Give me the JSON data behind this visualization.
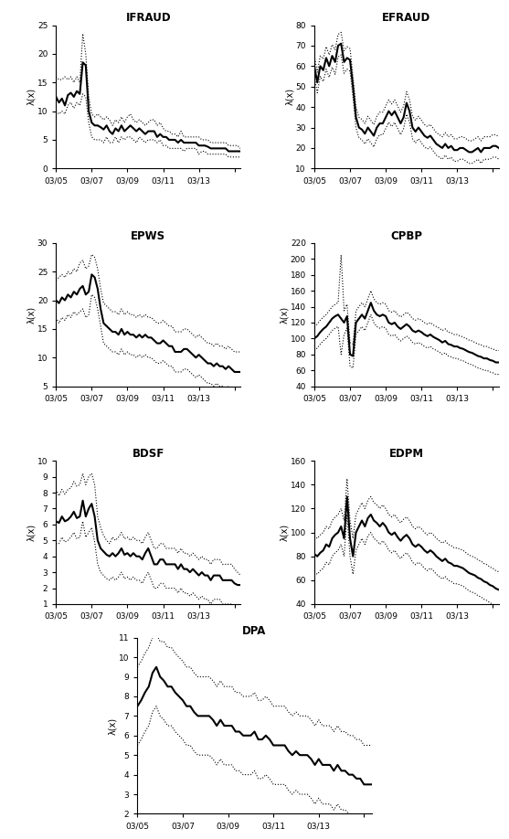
{
  "subplots": [
    {
      "title": "IFRAUD",
      "ylim": [
        0,
        25
      ],
      "yticks": [
        0,
        5,
        10,
        15,
        20,
        25
      ]
    },
    {
      "title": "EFRAUD",
      "ylim": [
        10,
        80
      ],
      "yticks": [
        10,
        20,
        30,
        40,
        50,
        60,
        70,
        80
      ]
    },
    {
      "title": "EPWS",
      "ylim": [
        5,
        30
      ],
      "yticks": [
        5,
        10,
        15,
        20,
        25,
        30
      ]
    },
    {
      "title": "CPBP",
      "ylim": [
        40,
        220
      ],
      "yticks": [
        40,
        60,
        80,
        100,
        120,
        140,
        160,
        180,
        200,
        220
      ]
    },
    {
      "title": "BDSF",
      "ylim": [
        1,
        10
      ],
      "yticks": [
        1,
        2,
        3,
        4,
        5,
        6,
        7,
        8,
        9,
        10
      ]
    },
    {
      "title": "EDPM",
      "ylim": [
        40,
        160
      ],
      "yticks": [
        40,
        60,
        80,
        100,
        120,
        140,
        160
      ]
    },
    {
      "title": "DPA",
      "ylim": [
        2,
        11
      ],
      "yticks": [
        2,
        3,
        4,
        5,
        6,
        7,
        8,
        9,
        10,
        11
      ]
    }
  ],
  "ylabel": "λ(x)",
  "xtick_positions": [
    0,
    12,
    24,
    36,
    48,
    60
  ],
  "xtick_labels": [
    "03/05",
    "03/07",
    "03/09",
    "03/11",
    "03/13",
    ""
  ],
  "n_points": 63,
  "IFRAUD_center": [
    12.5,
    11.5,
    12.2,
    11.0,
    12.8,
    13.2,
    12.5,
    13.5,
    13.0,
    18.5,
    18.0,
    10.0,
    8.0,
    7.5,
    7.5,
    7.2,
    6.8,
    7.5,
    6.5,
    6.0,
    7.0,
    6.5,
    7.5,
    6.5,
    7.0,
    7.5,
    7.0,
    6.5,
    7.0,
    6.5,
    6.0,
    6.5,
    6.5,
    6.5,
    5.5,
    6.0,
    5.5,
    5.5,
    5.0,
    5.0,
    5.0,
    4.5,
    5.0,
    4.5,
    4.5,
    4.5,
    4.5,
    4.5,
    4.0,
    4.0,
    4.0,
    3.8,
    3.5,
    3.5,
    3.5,
    3.5,
    3.5,
    3.5,
    3.0,
    3.0,
    3.0,
    3.0,
    3.0
  ],
  "IFRAUD_upper": [
    16.0,
    15.5,
    15.5,
    16.0,
    15.5,
    16.0,
    15.0,
    16.0,
    15.0,
    23.5,
    20.0,
    12.5,
    9.5,
    9.0,
    9.5,
    9.0,
    8.5,
    9.0,
    8.5,
    7.5,
    8.5,
    8.0,
    9.0,
    8.0,
    9.0,
    9.5,
    8.5,
    8.0,
    8.5,
    8.0,
    7.5,
    8.0,
    8.5,
    8.5,
    7.5,
    8.0,
    7.0,
    6.5,
    6.5,
    6.0,
    6.0,
    5.5,
    6.5,
    5.5,
    5.5,
    5.5,
    5.5,
    5.5,
    5.5,
    5.0,
    5.0,
    5.0,
    4.5,
    4.5,
    4.5,
    4.5,
    4.5,
    4.5,
    4.0,
    4.0,
    4.0,
    4.0,
    3.5
  ],
  "IFRAUD_lower": [
    10.0,
    9.5,
    10.0,
    9.5,
    11.0,
    11.5,
    10.5,
    11.5,
    11.0,
    13.0,
    12.5,
    8.0,
    5.5,
    5.0,
    5.0,
    5.0,
    4.5,
    5.5,
    4.5,
    4.5,
    5.5,
    4.5,
    5.5,
    5.0,
    5.5,
    5.5,
    5.0,
    4.5,
    5.5,
    5.0,
    4.5,
    5.0,
    5.0,
    5.0,
    4.5,
    5.0,
    4.0,
    4.0,
    3.5,
    3.5,
    3.5,
    3.5,
    3.5,
    3.0,
    3.5,
    3.5,
    3.5,
    3.5,
    2.5,
    3.0,
    3.0,
    2.5,
    2.5,
    2.5,
    2.5,
    2.5,
    2.5,
    2.5,
    2.0,
    2.0,
    2.0,
    2.0,
    2.0
  ],
  "EFRAUD_center": [
    60.0,
    52.0,
    60.0,
    58.0,
    64.0,
    60.0,
    65.0,
    62.0,
    70.0,
    71.0,
    62.0,
    64.0,
    63.0,
    50.0,
    35.0,
    30.0,
    29.0,
    27.0,
    30.0,
    28.0,
    26.0,
    30.0,
    32.0,
    32.0,
    35.0,
    38.0,
    36.0,
    38.0,
    35.0,
    32.0,
    35.0,
    42.0,
    38.0,
    30.0,
    28.0,
    30.0,
    28.0,
    26.0,
    25.0,
    26.0,
    24.0,
    22.0,
    21.0,
    20.0,
    22.0,
    20.0,
    21.0,
    19.0,
    19.0,
    20.0,
    20.0,
    19.0,
    18.0,
    18.0,
    19.0,
    20.0,
    18.0,
    20.0,
    20.0,
    20.0,
    21.0,
    21.0,
    20.0
  ],
  "EFRAUD_upper": [
    65.0,
    57.0,
    65.0,
    63.5,
    69.5,
    65.5,
    70.5,
    68.0,
    75.5,
    76.5,
    67.5,
    69.5,
    68.5,
    55.0,
    40.0,
    35.0,
    34.0,
    32.0,
    35.5,
    33.5,
    31.5,
    35.5,
    37.5,
    37.5,
    40.5,
    43.5,
    41.5,
    43.5,
    40.5,
    37.5,
    40.5,
    47.5,
    43.5,
    35.5,
    33.5,
    35.5,
    33.5,
    31.5,
    30.5,
    31.5,
    29.5,
    27.5,
    26.5,
    25.5,
    27.5,
    25.5,
    26.5,
    24.5,
    24.5,
    25.5,
    25.5,
    24.5,
    23.5,
    23.5,
    24.5,
    25.5,
    23.5,
    25.5,
    25.5,
    25.5,
    26.5,
    26.5,
    25.5
  ],
  "EFRAUD_lower": [
    55.0,
    47.0,
    55.0,
    52.5,
    58.5,
    54.5,
    59.5,
    56.0,
    64.5,
    65.5,
    56.5,
    58.5,
    57.5,
    45.0,
    30.0,
    25.0,
    24.0,
    22.0,
    24.5,
    22.5,
    20.5,
    24.5,
    26.5,
    26.5,
    29.5,
    32.5,
    30.5,
    32.5,
    29.5,
    26.5,
    29.5,
    36.5,
    32.5,
    24.5,
    22.5,
    24.5,
    22.5,
    20.5,
    19.5,
    20.5,
    18.5,
    16.5,
    15.5,
    14.5,
    16.5,
    14.5,
    15.5,
    13.5,
    13.5,
    14.5,
    14.5,
    13.5,
    12.5,
    12.5,
    13.5,
    14.5,
    12.5,
    14.5,
    14.5,
    14.5,
    15.5,
    15.5,
    14.5
  ],
  "EPWS_center": [
    20.0,
    19.5,
    20.5,
    20.0,
    21.0,
    20.5,
    21.5,
    21.0,
    22.0,
    22.5,
    21.0,
    21.5,
    24.5,
    24.0,
    22.0,
    18.5,
    16.0,
    15.5,
    15.0,
    14.5,
    14.5,
    14.0,
    15.0,
    14.0,
    14.5,
    14.0,
    14.0,
    13.5,
    14.0,
    13.5,
    14.0,
    13.5,
    13.5,
    13.0,
    12.5,
    12.5,
    13.0,
    12.5,
    12.0,
    12.0,
    11.0,
    11.0,
    11.0,
    11.5,
    11.5,
    11.0,
    10.5,
    10.0,
    10.5,
    10.0,
    9.5,
    9.0,
    9.0,
    8.5,
    9.0,
    8.5,
    8.5,
    8.0,
    8.5,
    8.0,
    7.5,
    7.5,
    7.5
  ],
  "EPWS_upper": [
    23.5,
    24.0,
    24.5,
    24.0,
    25.0,
    24.5,
    25.5,
    25.0,
    26.5,
    27.0,
    25.5,
    26.0,
    28.0,
    27.5,
    25.5,
    22.0,
    19.5,
    19.0,
    18.5,
    18.0,
    18.0,
    17.5,
    18.5,
    17.5,
    18.0,
    17.5,
    17.5,
    17.0,
    17.5,
    17.0,
    17.5,
    17.0,
    17.0,
    16.5,
    16.0,
    16.0,
    16.5,
    16.0,
    15.5,
    15.5,
    14.5,
    14.5,
    14.5,
    15.0,
    15.0,
    14.5,
    14.0,
    13.5,
    14.0,
    13.5,
    13.0,
    12.5,
    12.5,
    12.0,
    12.5,
    12.0,
    12.0,
    11.5,
    12.0,
    11.5,
    11.0,
    11.0,
    11.0
  ],
  "EPWS_lower": [
    17.0,
    16.0,
    17.0,
    16.5,
    17.5,
    17.0,
    18.0,
    17.5,
    18.0,
    18.5,
    17.0,
    17.5,
    21.0,
    20.5,
    18.5,
    15.5,
    12.5,
    12.0,
    11.5,
    11.0,
    11.0,
    10.5,
    11.5,
    10.5,
    11.0,
    10.5,
    10.5,
    10.0,
    10.5,
    10.0,
    10.5,
    10.0,
    10.0,
    9.5,
    9.0,
    9.0,
    9.5,
    9.0,
    8.5,
    8.5,
    7.5,
    7.5,
    7.5,
    8.0,
    8.0,
    7.5,
    7.0,
    6.5,
    7.0,
    6.5,
    6.0,
    5.5,
    5.5,
    5.0,
    5.5,
    5.0,
    5.0,
    4.5,
    5.0,
    4.5,
    4.0,
    4.0,
    4.0
  ],
  "CPBP_center": [
    100.0,
    103.0,
    108.0,
    112.0,
    115.0,
    120.0,
    125.0,
    128.0,
    130.0,
    125.0,
    120.0,
    128.0,
    80.0,
    78.0,
    120.0,
    125.0,
    130.0,
    125.0,
    135.0,
    145.0,
    135.0,
    130.0,
    128.0,
    130.0,
    128.0,
    120.0,
    118.0,
    120.0,
    115.0,
    112.0,
    115.0,
    118.0,
    115.0,
    110.0,
    108.0,
    110.0,
    108.0,
    105.0,
    103.0,
    105.0,
    102.0,
    100.0,
    98.0,
    95.0,
    97.0,
    93.0,
    92.0,
    90.0,
    90.0,
    88.0,
    87.0,
    85.0,
    83.0,
    82.0,
    80.0,
    78.0,
    77.0,
    75.0,
    75.0,
    73.0,
    72.0,
    70.0,
    70.0
  ],
  "CPBP_upper": [
    115.0,
    118.0,
    123.0,
    127.0,
    130.0,
    135.0,
    140.0,
    143.0,
    145.0,
    205.0,
    135.0,
    143.0,
    95.0,
    93.0,
    135.0,
    140.0,
    145.0,
    140.0,
    150.0,
    160.0,
    150.0,
    145.0,
    143.0,
    145.0,
    143.0,
    135.0,
    133.0,
    135.0,
    130.0,
    127.0,
    130.0,
    133.0,
    130.0,
    125.0,
    123.0,
    125.0,
    123.0,
    120.0,
    118.0,
    120.0,
    117.0,
    115.0,
    113.0,
    110.0,
    112.0,
    108.0,
    107.0,
    105.0,
    105.0,
    103.0,
    102.0,
    100.0,
    98.0,
    97.0,
    95.0,
    93.0,
    92.0,
    90.0,
    90.0,
    88.0,
    87.0,
    85.0,
    85.0
  ],
  "CPBP_lower": [
    85.0,
    88.0,
    93.0,
    97.0,
    100.0,
    105.0,
    110.0,
    113.0,
    115.0,
    80.0,
    105.0,
    113.0,
    65.0,
    63.0,
    105.0,
    110.0,
    115.0,
    110.0,
    120.0,
    130.0,
    120.0,
    115.0,
    113.0,
    115.0,
    113.0,
    105.0,
    103.0,
    105.0,
    100.0,
    97.0,
    100.0,
    103.0,
    100.0,
    95.0,
    93.0,
    95.0,
    93.0,
    90.0,
    88.0,
    90.0,
    87.0,
    85.0,
    83.0,
    80.0,
    82.0,
    78.0,
    77.0,
    75.0,
    75.0,
    73.0,
    72.0,
    70.0,
    68.0,
    67.0,
    65.0,
    63.0,
    62.0,
    60.0,
    60.0,
    58.0,
    57.0,
    55.0,
    55.0
  ],
  "BDSF_center": [
    6.2,
    6.1,
    6.5,
    6.2,
    6.3,
    6.5,
    6.8,
    6.4,
    6.5,
    7.5,
    6.5,
    7.0,
    7.3,
    6.5,
    5.0,
    4.5,
    4.3,
    4.1,
    4.0,
    4.2,
    4.0,
    4.2,
    4.5,
    4.1,
    4.2,
    4.0,
    4.2,
    4.0,
    4.0,
    3.8,
    4.2,
    4.5,
    4.0,
    3.5,
    3.5,
    3.8,
    3.8,
    3.5,
    3.5,
    3.5,
    3.5,
    3.2,
    3.5,
    3.2,
    3.2,
    3.0,
    3.2,
    3.0,
    2.8,
    3.0,
    2.8,
    2.8,
    2.5,
    2.8,
    2.8,
    2.8,
    2.5,
    2.5,
    2.5,
    2.5,
    2.3,
    2.2,
    2.2
  ],
  "BDSF_upper": [
    8.2,
    7.8,
    8.2,
    7.9,
    8.2,
    8.3,
    8.7,
    8.4,
    8.5,
    9.2,
    8.5,
    9.0,
    9.2,
    8.5,
    6.5,
    5.8,
    5.3,
    5.0,
    4.8,
    5.2,
    5.0,
    5.2,
    5.5,
    5.1,
    5.2,
    5.0,
    5.2,
    5.0,
    5.0,
    4.8,
    5.2,
    5.5,
    5.0,
    4.5,
    4.5,
    4.8,
    4.8,
    4.5,
    4.5,
    4.5,
    4.5,
    4.2,
    4.5,
    4.2,
    4.2,
    4.0,
    4.2,
    4.0,
    3.8,
    4.0,
    3.8,
    3.8,
    3.5,
    3.8,
    3.8,
    3.8,
    3.5,
    3.5,
    3.5,
    3.5,
    3.2,
    3.0,
    2.8
  ],
  "BDSF_lower": [
    4.8,
    4.8,
    5.2,
    4.9,
    5.0,
    5.2,
    5.5,
    5.1,
    5.2,
    6.2,
    5.2,
    5.5,
    5.8,
    4.9,
    3.5,
    3.0,
    2.8,
    2.6,
    2.5,
    2.7,
    2.5,
    2.7,
    3.0,
    2.6,
    2.7,
    2.5,
    2.7,
    2.5,
    2.5,
    2.3,
    2.7,
    3.0,
    2.5,
    2.0,
    2.0,
    2.3,
    2.3,
    2.0,
    2.0,
    2.0,
    2.0,
    1.7,
    2.0,
    1.7,
    1.7,
    1.5,
    1.7,
    1.5,
    1.3,
    1.5,
    1.3,
    1.3,
    1.0,
    1.3,
    1.3,
    1.3,
    1.0,
    1.0,
    1.0,
    1.0,
    0.8,
    0.7,
    0.7
  ],
  "EDPM_center": [
    82.0,
    80.0,
    83.0,
    85.0,
    90.0,
    88.0,
    95.0,
    98.0,
    100.0,
    105.0,
    95.0,
    130.0,
    95.0,
    80.0,
    100.0,
    105.0,
    110.0,
    105.0,
    112.0,
    115.0,
    110.0,
    108.0,
    105.0,
    108.0,
    105.0,
    100.0,
    98.0,
    100.0,
    96.0,
    93.0,
    96.0,
    98.0,
    95.0,
    90.0,
    88.0,
    90.0,
    88.0,
    85.0,
    83.0,
    85.0,
    83.0,
    80.0,
    78.0,
    76.0,
    78.0,
    75.0,
    74.0,
    72.0,
    72.0,
    71.0,
    70.0,
    68.0,
    66.0,
    65.0,
    64.0,
    62.0,
    61.0,
    59.0,
    58.0,
    56.0,
    55.0,
    53.0,
    52.0
  ],
  "EDPM_upper": [
    97.0,
    95.0,
    98.0,
    100.0,
    105.0,
    103.0,
    110.0,
    113.0,
    115.0,
    120.0,
    110.0,
    145.0,
    110.0,
    95.0,
    115.0,
    120.0,
    125.0,
    120.0,
    127.0,
    130.0,
    125.0,
    123.0,
    120.0,
    123.0,
    120.0,
    115.0,
    113.0,
    115.0,
    111.0,
    108.0,
    111.0,
    113.0,
    110.0,
    105.0,
    103.0,
    105.0,
    103.0,
    100.0,
    98.0,
    100.0,
    98.0,
    95.0,
    93.0,
    91.0,
    93.0,
    90.0,
    89.0,
    87.0,
    87.0,
    86.0,
    85.0,
    83.0,
    81.0,
    80.0,
    79.0,
    77.0,
    76.0,
    74.0,
    73.0,
    71.0,
    70.0,
    68.0,
    67.0
  ],
  "EDPM_lower": [
    67.0,
    65.0,
    68.0,
    70.0,
    75.0,
    73.0,
    80.0,
    83.0,
    85.0,
    90.0,
    80.0,
    115.0,
    80.0,
    65.0,
    85.0,
    90.0,
    95.0,
    90.0,
    97.0,
    100.0,
    95.0,
    93.0,
    90.0,
    93.0,
    90.0,
    85.0,
    83.0,
    85.0,
    81.0,
    78.0,
    81.0,
    83.0,
    80.0,
    75.0,
    73.0,
    75.0,
    73.0,
    70.0,
    68.0,
    70.0,
    68.0,
    65.0,
    63.0,
    61.0,
    63.0,
    60.0,
    59.0,
    57.0,
    57.0,
    56.0,
    55.0,
    53.0,
    51.0,
    50.0,
    49.0,
    47.0,
    46.0,
    44.0,
    43.0,
    41.0,
    40.0,
    38.0,
    37.0
  ],
  "DPA_center": [
    7.5,
    7.8,
    8.2,
    8.5,
    9.2,
    9.5,
    9.0,
    8.8,
    8.5,
    8.5,
    8.2,
    8.0,
    7.8,
    7.5,
    7.5,
    7.2,
    7.0,
    7.0,
    7.0,
    7.0,
    6.8,
    6.5,
    6.8,
    6.5,
    6.5,
    6.5,
    6.2,
    6.2,
    6.0,
    6.0,
    6.0,
    6.2,
    5.8,
    5.8,
    6.0,
    5.8,
    5.5,
    5.5,
    5.5,
    5.5,
    5.2,
    5.0,
    5.2,
    5.0,
    5.0,
    5.0,
    4.8,
    4.5,
    4.8,
    4.5,
    4.5,
    4.5,
    4.2,
    4.5,
    4.2,
    4.2,
    4.0,
    4.0,
    3.8,
    3.8,
    3.5,
    3.5,
    3.5
  ],
  "DPA_upper": [
    9.5,
    9.8,
    10.2,
    10.5,
    11.0,
    11.2,
    10.8,
    10.8,
    10.5,
    10.5,
    10.2,
    10.0,
    9.8,
    9.5,
    9.5,
    9.2,
    9.0,
    9.0,
    9.0,
    9.0,
    8.8,
    8.5,
    8.8,
    8.5,
    8.5,
    8.5,
    8.2,
    8.2,
    8.0,
    8.0,
    8.0,
    8.2,
    7.8,
    7.8,
    8.0,
    7.8,
    7.5,
    7.5,
    7.5,
    7.5,
    7.2,
    7.0,
    7.2,
    7.0,
    7.0,
    7.0,
    6.8,
    6.5,
    6.8,
    6.5,
    6.5,
    6.5,
    6.2,
    6.5,
    6.2,
    6.2,
    6.0,
    6.0,
    5.8,
    5.8,
    5.5,
    5.5,
    5.5
  ],
  "DPA_lower": [
    5.5,
    5.8,
    6.2,
    6.5,
    7.2,
    7.5,
    7.0,
    6.8,
    6.5,
    6.5,
    6.2,
    6.0,
    5.8,
    5.5,
    5.5,
    5.2,
    5.0,
    5.0,
    5.0,
    5.0,
    4.8,
    4.5,
    4.8,
    4.5,
    4.5,
    4.5,
    4.2,
    4.2,
    4.0,
    4.0,
    4.0,
    4.2,
    3.8,
    3.8,
    4.0,
    3.8,
    3.5,
    3.5,
    3.5,
    3.5,
    3.2,
    3.0,
    3.2,
    3.0,
    3.0,
    3.0,
    2.8,
    2.5,
    2.8,
    2.5,
    2.5,
    2.5,
    2.2,
    2.5,
    2.2,
    2.2,
    2.0,
    2.0,
    1.8,
    1.8,
    1.5,
    1.5,
    1.5
  ]
}
